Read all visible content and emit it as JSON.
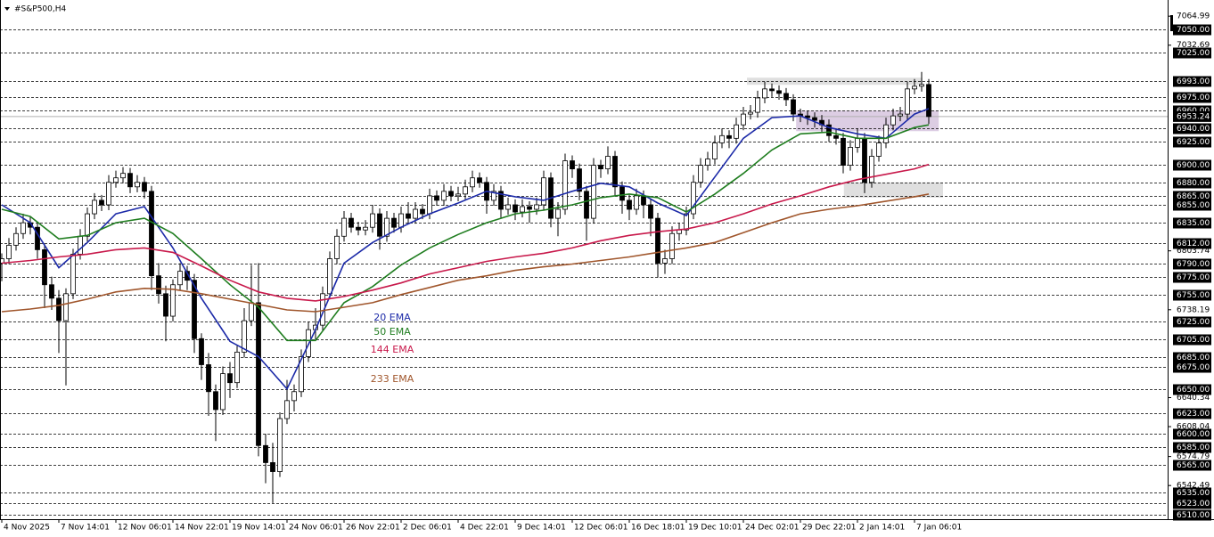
{
  "chart_data": {
    "type": "candlestick",
    "title": "#S&P500,H4",
    "xlim": [
      -0.25,
      163.5
    ],
    "ylim": [
      6505,
      7083
    ],
    "xticks": [
      {
        "value": 0,
        "label": "4 Nov 2025"
      },
      {
        "value": 8,
        "label": "7 Nov 14:01"
      },
      {
        "value": 16,
        "label": "12 Nov 06:01"
      },
      {
        "value": 24,
        "label": "14 Nov 22:01"
      },
      {
        "value": 32,
        "label": "19 Nov 14:01"
      },
      {
        "value": 40,
        "label": "24 Nov 06:01"
      },
      {
        "value": 48,
        "label": "26 Nov 22:01"
      },
      {
        "value": 56,
        "label": "2 Dec 06:01"
      },
      {
        "value": 64,
        "label": "4 Dec 22:01"
      },
      {
        "value": 72,
        "label": "9 Dec 14:01"
      },
      {
        "value": 80,
        "label": "12 Dec 06:01"
      },
      {
        "value": 88,
        "label": "16 Dec 18:01"
      },
      {
        "value": 96,
        "label": "19 Dec 10:01"
      },
      {
        "value": 104,
        "label": "24 Dec 02:01"
      },
      {
        "value": 112,
        "label": "29 Dec 22:01"
      },
      {
        "value": 120,
        "label": "2 Jan 14:01"
      },
      {
        "value": 128,
        "label": "7 Jan 06:01"
      }
    ],
    "yticks": [
      7064.99,
      7032.69,
      6803.74,
      6738.19,
      6640.34,
      6608.04,
      6574.79,
      6542.49
    ],
    "levels": [
      {
        "value": 7050,
        "label": "7050.00"
      },
      {
        "value": 7025,
        "label": "7025.00"
      },
      {
        "value": 6993,
        "label": "6993.00"
      },
      {
        "value": 6975,
        "label": "6975.00"
      },
      {
        "value": 6960,
        "label": "6960.00"
      },
      {
        "value": 6940,
        "label": "6940.00"
      },
      {
        "value": 6925,
        "label": "6925.00"
      },
      {
        "value": 6900,
        "label": "6900.00"
      },
      {
        "value": 6880,
        "label": "6880.00"
      },
      {
        "value": 6865,
        "label": "6865.00"
      },
      {
        "value": 6855,
        "label": "6855.00"
      },
      {
        "value": 6835,
        "label": "6835.00"
      },
      {
        "value": 6812,
        "label": "6812.00"
      },
      {
        "value": 6790,
        "label": "6790.00"
      },
      {
        "value": 6775,
        "label": "6775.00"
      },
      {
        "value": 6755,
        "label": "6755.00"
      },
      {
        "value": 6725,
        "label": "6725.00"
      },
      {
        "value": 6705,
        "label": "6705.00"
      },
      {
        "value": 6685,
        "label": "6685.00"
      },
      {
        "value": 6675,
        "label": "6675.00"
      },
      {
        "value": 6650,
        "label": "6650.00"
      },
      {
        "value": 6623,
        "label": "6623.00"
      },
      {
        "value": 6600,
        "label": "6600.00"
      },
      {
        "value": 6585,
        "label": "6585.00"
      },
      {
        "value": 6565,
        "label": "6565.00"
      },
      {
        "value": 6535,
        "label": "6535.00"
      },
      {
        "value": 6523,
        "label": "6523.00"
      },
      {
        "value": 6510,
        "label": "6510.00"
      }
    ],
    "zones": [
      {
        "x": [
          104.5,
          129.1
        ],
        "y": [
          6988.6,
          6996.5
        ],
        "color": "#dcdcdc"
      },
      {
        "x": [
          111.4,
          131.4
        ],
        "y": [
          6937,
          6960
        ],
        "color": "#d8c8e0"
      },
      {
        "x": [
          118.1,
          132
        ],
        "y": [
          6863,
          6880
        ],
        "color": "#dcdcdc"
      }
    ],
    "ohlc": [
      [
        6790,
        6801,
        6770,
        6795
      ],
      [
        6795,
        6818,
        6789,
        6810
      ],
      [
        6810,
        6830,
        6804,
        6823
      ],
      [
        6823,
        6845,
        6817,
        6835
      ],
      [
        6835,
        6842,
        6822,
        6830
      ],
      [
        6830,
        6836,
        6795,
        6805
      ],
      [
        6805,
        6812,
        6740,
        6766
      ],
      [
        6766,
        6775,
        6738,
        6751
      ],
      [
        6751,
        6760,
        6690,
        6726
      ],
      [
        6726,
        6762,
        6654,
        6756
      ],
      [
        6756,
        6806,
        6750,
        6800
      ],
      [
        6800,
        6828,
        6794,
        6820
      ],
      [
        6820,
        6852,
        6814,
        6845
      ],
      [
        6845,
        6868,
        6839,
        6860
      ],
      [
        6860,
        6866,
        6848,
        6855
      ],
      [
        6855,
        6888,
        6849,
        6880
      ],
      [
        6880,
        6893,
        6874,
        6885
      ],
      [
        6885,
        6897,
        6879,
        6890
      ],
      [
        6890,
        6896,
        6868,
        6875
      ],
      [
        6875,
        6888,
        6869,
        6880
      ],
      [
        6880,
        6886,
        6862,
        6870
      ],
      [
        6870,
        6876,
        6760,
        6776
      ],
      [
        6776,
        6790,
        6745,
        6756
      ],
      [
        6756,
        6765,
        6703,
        6731
      ],
      [
        6731,
        6772,
        6725,
        6766
      ],
      [
        6766,
        6790,
        6760,
        6781
      ],
      [
        6781,
        6787,
        6760,
        6771
      ],
      [
        6771,
        6778,
        6690,
        6706
      ],
      [
        6706,
        6712,
        6660,
        6677
      ],
      [
        6677,
        6690,
        6620,
        6647
      ],
      [
        6647,
        6655,
        6592,
        6627
      ],
      [
        6627,
        6675,
        6621,
        6667
      ],
      [
        6667,
        6680,
        6640,
        6657
      ],
      [
        6657,
        6698,
        6651,
        6691
      ],
      [
        6691,
        6740,
        6685,
        6726
      ],
      [
        6726,
        6788,
        6720,
        6746
      ],
      [
        6746,
        6790,
        6575,
        6587
      ],
      [
        6587,
        6600,
        6545,
        6568
      ],
      [
        6568,
        6590,
        6523,
        6558
      ],
      [
        6558,
        6624,
        6552,
        6617
      ],
      [
        6617,
        6660,
        6611,
        6637
      ],
      [
        6637,
        6655,
        6625,
        6647
      ],
      [
        6647,
        6694,
        6641,
        6686
      ],
      [
        6686,
        6725,
        6680,
        6716
      ],
      [
        6716,
        6740,
        6705,
        6721
      ],
      [
        6721,
        6764,
        6715,
        6756
      ],
      [
        6756,
        6803,
        6750,
        6795
      ],
      [
        6795,
        6828,
        6789,
        6820
      ],
      [
        6820,
        6848,
        6814,
        6840
      ],
      [
        6840,
        6846,
        6824,
        6830
      ],
      [
        6830,
        6836,
        6821,
        6827
      ],
      [
        6827,
        6838,
        6821,
        6830
      ],
      [
        6830,
        6855,
        6824,
        6845
      ],
      [
        6845,
        6851,
        6805,
        6820
      ],
      [
        6820,
        6848,
        6814,
        6840
      ],
      [
        6840,
        6846,
        6824,
        6830
      ],
      [
        6830,
        6853,
        6824,
        6845
      ],
      [
        6845,
        6858,
        6834,
        6840
      ],
      [
        6840,
        6858,
        6834,
        6850
      ],
      [
        6850,
        6856,
        6839,
        6845
      ],
      [
        6845,
        6873,
        6839,
        6865
      ],
      [
        6865,
        6871,
        6854,
        6860
      ],
      [
        6860,
        6878,
        6854,
        6870
      ],
      [
        6870,
        6876,
        6859,
        6865
      ],
      [
        6865,
        6875,
        6859,
        6867
      ],
      [
        6867,
        6883,
        6861,
        6875
      ],
      [
        6875,
        6893,
        6869,
        6885
      ],
      [
        6885,
        6891,
        6874,
        6880
      ],
      [
        6880,
        6886,
        6845,
        6860
      ],
      [
        6860,
        6878,
        6854,
        6870
      ],
      [
        6870,
        6876,
        6840,
        6850
      ],
      [
        6850,
        6863,
        6844,
        6855
      ],
      [
        6855,
        6861,
        6838,
        6847
      ],
      [
        6847,
        6861,
        6841,
        6853
      ],
      [
        6853,
        6859,
        6835,
        6850
      ],
      [
        6850,
        6863,
        6844,
        6855
      ],
      [
        6855,
        6893,
        6849,
        6885
      ],
      [
        6885,
        6891,
        6830,
        6840
      ],
      [
        6840,
        6858,
        6820,
        6850
      ],
      [
        6850,
        6912,
        6844,
        6904
      ],
      [
        6904,
        6910,
        6885,
        6895
      ],
      [
        6895,
        6901,
        6860,
        6870
      ],
      [
        6870,
        6876,
        6815,
        6840
      ],
      [
        6840,
        6907,
        6834,
        6899
      ],
      [
        6899,
        6905,
        6885,
        6895
      ],
      [
        6895,
        6920,
        6889,
        6909
      ],
      [
        6909,
        6915,
        6865,
        6875
      ],
      [
        6875,
        6881,
        6845,
        6860
      ],
      [
        6860,
        6866,
        6838,
        6850
      ],
      [
        6850,
        6873,
        6844,
        6865
      ],
      [
        6865,
        6871,
        6840,
        6855
      ],
      [
        6855,
        6861,
        6820,
        6840
      ],
      [
        6840,
        6846,
        6774,
        6790
      ],
      [
        6790,
        6805,
        6778,
        6795
      ],
      [
        6795,
        6831,
        6789,
        6823
      ],
      [
        6823,
        6835,
        6815,
        6827
      ],
      [
        6827,
        6853,
        6821,
        6845
      ],
      [
        6845,
        6888,
        6839,
        6880
      ],
      [
        6880,
        6907,
        6874,
        6899
      ],
      [
        6899,
        6914,
        6893,
        6906
      ],
      [
        6906,
        6932,
        6900,
        6924
      ],
      [
        6924,
        6940,
        6918,
        6932
      ],
      [
        6932,
        6938,
        6918,
        6929
      ],
      [
        6929,
        6952,
        6923,
        6944
      ],
      [
        6944,
        6964,
        6938,
        6956
      ],
      [
        6956,
        6966,
        6950,
        6958
      ],
      [
        6958,
        6982,
        6952,
        6974
      ],
      [
        6974,
        6992,
        6968,
        6984
      ],
      [
        6984,
        6990,
        6975,
        6982
      ],
      [
        6982,
        6988,
        6972,
        6979
      ],
      [
        6979,
        6985,
        6965,
        6972
      ],
      [
        6972,
        6978,
        6948,
        6956
      ],
      [
        6956,
        6962,
        6947,
        6954
      ],
      [
        6954,
        6960,
        6944,
        6952
      ],
      [
        6952,
        6958,
        6941,
        6949
      ],
      [
        6949,
        6955,
        6936,
        6944
      ],
      [
        6944,
        6950,
        6925,
        6932
      ],
      [
        6932,
        6940,
        6922,
        6929
      ],
      [
        6929,
        6935,
        6890,
        6899
      ],
      [
        6899,
        6927,
        6893,
        6919
      ],
      [
        6919,
        6940,
        6913,
        6929
      ],
      [
        6929,
        6935,
        6868,
        6880
      ],
      [
        6880,
        6917,
        6874,
        6909
      ],
      [
        6909,
        6932,
        6903,
        6924
      ],
      [
        6924,
        6952,
        6918,
        6944
      ],
      [
        6944,
        6962,
        6938,
        6954
      ],
      [
        6954,
        6964,
        6948,
        6956
      ],
      [
        6956,
        6992,
        6950,
        6984
      ],
      [
        6984,
        6995,
        6978,
        6987
      ],
      [
        6987,
        7003,
        6981,
        6989
      ],
      [
        6989,
        6995,
        6945,
        6953.24
      ]
    ],
    "x": [
      0,
      4,
      8,
      12,
      16,
      20,
      24,
      28,
      32,
      36,
      40,
      44,
      48,
      52,
      56,
      60,
      64,
      68,
      72,
      76,
      80,
      84,
      88,
      92,
      96,
      100,
      104,
      108,
      112,
      116,
      120,
      124,
      128,
      130
    ],
    "series": [
      {
        "name": "20 EMA",
        "color": "#1c2aa8",
        "values": [
          6855,
          6835,
          6785,
          6813,
          6845,
          6853,
          6807,
          6751,
          6703,
          6686,
          6650,
          6716,
          6790,
          6813,
          6830,
          6845,
          6857,
          6870,
          6864,
          6860,
          6870,
          6879,
          6875,
          6857,
          6843,
          6886,
          6929,
          6952,
          6954,
          6941,
          6934,
          6929,
          6956,
          6962
        ]
      },
      {
        "name": "50 EMA",
        "color": "#1f7d1f",
        "values": [
          6850,
          6842,
          6817,
          6821,
          6835,
          6840,
          6823,
          6795,
          6766,
          6741,
          6704,
          6704,
          6746,
          6764,
          6788,
          6807,
          6822,
          6835,
          6845,
          6849,
          6855,
          6863,
          6867,
          6863,
          6847,
          6867,
          6890,
          6916,
          6934,
          6936,
          6929,
          6929,
          6941,
          6944
        ]
      },
      {
        "name": "144 EMA",
        "color": "#c8194b",
        "values": [
          6790,
          6793,
          6797,
          6800,
          6805,
          6807,
          6802,
          6787,
          6771,
          6758,
          6751,
          6748,
          6753,
          6760,
          6768,
          6778,
          6785,
          6792,
          6797,
          6801,
          6807,
          6815,
          6821,
          6825,
          6828,
          6835,
          6845,
          6856,
          6865,
          6875,
          6883,
          6889,
          6895,
          6900
        ]
      },
      {
        "name": "233 EMA",
        "color": "#a0562c",
        "values": [
          6736,
          6739,
          6743,
          6750,
          6758,
          6762,
          6761,
          6756,
          6750,
          6744,
          6738,
          6736,
          6741,
          6746,
          6755,
          6763,
          6771,
          6776,
          6782,
          6786,
          6789,
          6793,
          6797,
          6802,
          6807,
          6813,
          6824,
          6835,
          6845,
          6850,
          6854,
          6859,
          6864,
          6867
        ]
      }
    ]
  }
}
